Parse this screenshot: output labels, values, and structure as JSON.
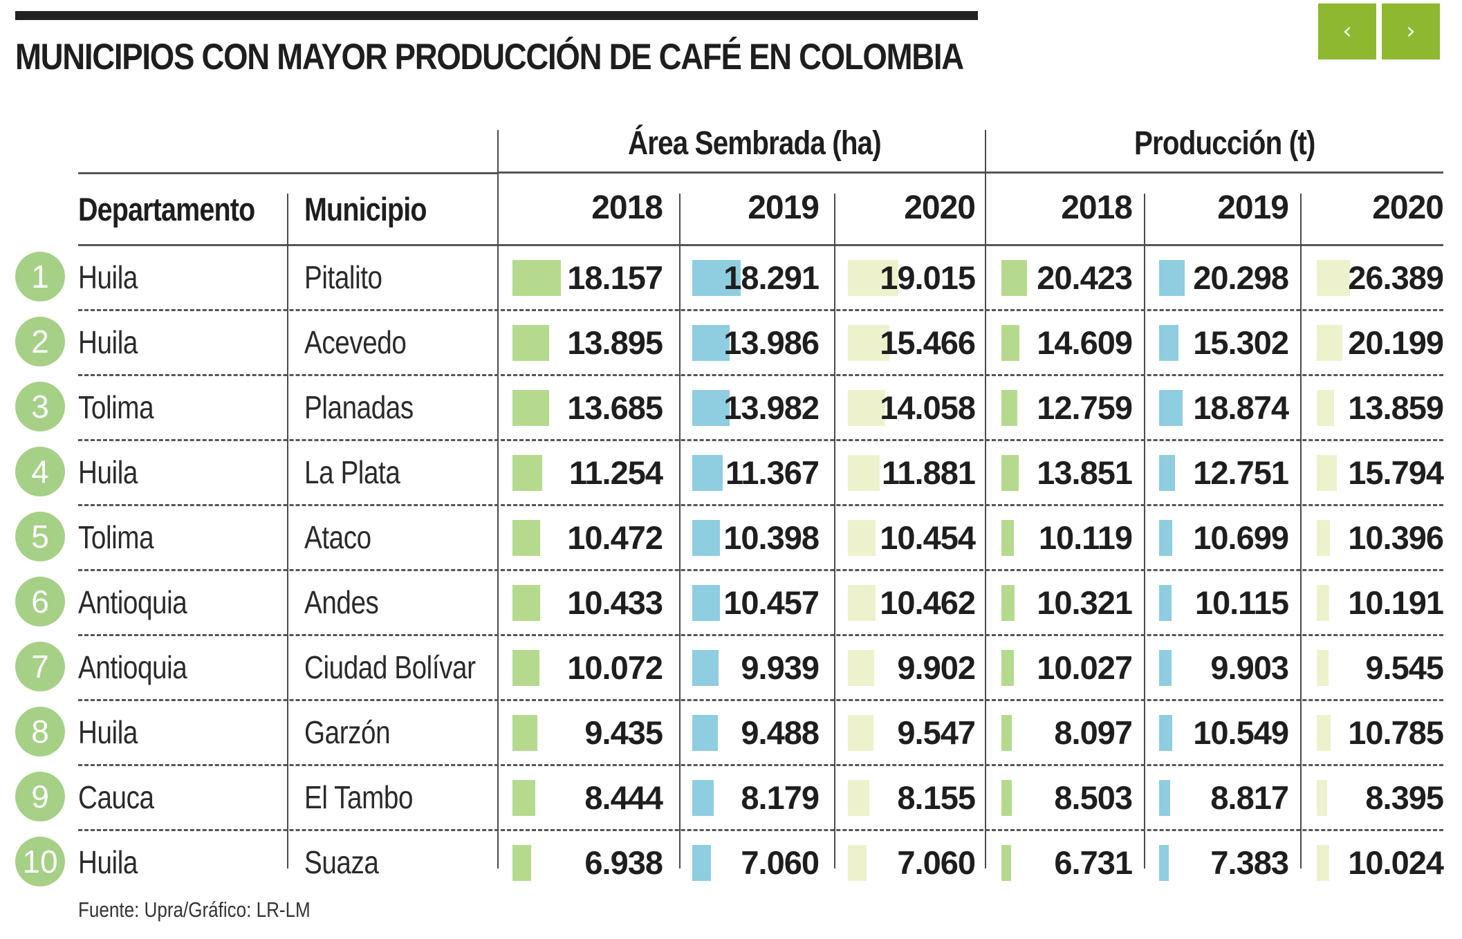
{
  "title": "MUNICIPIOS CON MAYOR PRODUCCIÓN DE CAFÉ EN COLOMBIA",
  "nav": {
    "prev_label": "‹",
    "next_label": "›",
    "prev_icon": "chevron-left-icon",
    "next_icon": "chevron-right-icon"
  },
  "colors": {
    "accent": "#8db82f",
    "rank_badge": "#a5d086",
    "bar_2018": "#b5da8e",
    "bar_2019": "#8fcde0",
    "bar_2020": "#eef2cc"
  },
  "source": "Fuente: Upra/Gráfico: LR-LM",
  "chart_data": {
    "type": "table",
    "title": "MUNICIPIOS CON MAYOR PRODUCCIÓN DE CAFÉ EN COLOMBIA",
    "column_headers": {
      "department": "Departamento",
      "municipality": "Municipio"
    },
    "groups": [
      {
        "name": "Área Sembrada (ha)",
        "years": [
          "2018",
          "2019",
          "2020"
        ]
      },
      {
        "name": "Producción (t)",
        "years": [
          "2018",
          "2019",
          "2020"
        ]
      }
    ],
    "rows": [
      {
        "rank": "1",
        "departamento": "Huila",
        "municipio": "Pitalito",
        "area": [
          18157,
          18291,
          19015
        ],
        "area_labels": [
          "18.157",
          "18.291",
          "19.015"
        ],
        "produccion": [
          20423,
          20298,
          26389
        ],
        "produccion_labels": [
          "20.423",
          "20.298",
          "26.389"
        ]
      },
      {
        "rank": "2",
        "departamento": "Huila",
        "municipio": "Acevedo",
        "area": [
          13895,
          13986,
          15466
        ],
        "area_labels": [
          "13.895",
          "13.986",
          "15.466"
        ],
        "produccion": [
          14609,
          15302,
          20199
        ],
        "produccion_labels": [
          "14.609",
          "15.302",
          "20.199"
        ]
      },
      {
        "rank": "3",
        "departamento": "Tolima",
        "municipio": "Planadas",
        "area": [
          13685,
          13982,
          14058
        ],
        "area_labels": [
          "13.685",
          "13.982",
          "14.058"
        ],
        "produccion": [
          12759,
          18874,
          13859
        ],
        "produccion_labels": [
          "12.759",
          "18.874",
          "13.859"
        ]
      },
      {
        "rank": "4",
        "departamento": "Huila",
        "municipio": "La Plata",
        "area": [
          11254,
          11367,
          11881
        ],
        "area_labels": [
          "11.254",
          "11.367",
          "11.881"
        ],
        "produccion": [
          13851,
          12751,
          15794
        ],
        "produccion_labels": [
          "13.851",
          "12.751",
          "15.794"
        ]
      },
      {
        "rank": "5",
        "departamento": "Tolima",
        "municipio": "Ataco",
        "area": [
          10472,
          10398,
          10454
        ],
        "area_labels": [
          "10.472",
          "10.398",
          "10.454"
        ],
        "produccion": [
          10119,
          10699,
          10396
        ],
        "produccion_labels": [
          "10.119",
          "10.699",
          "10.396"
        ]
      },
      {
        "rank": "6",
        "departamento": "Antioquia",
        "municipio": "Andes",
        "area": [
          10433,
          10457,
          10462
        ],
        "area_labels": [
          "10.433",
          "10.457",
          "10.462"
        ],
        "produccion": [
          10321,
          10115,
          10191
        ],
        "produccion_labels": [
          "10.321",
          "10.115",
          "10.191"
        ]
      },
      {
        "rank": "7",
        "departamento": "Antioquia",
        "municipio": "Ciudad Bolívar",
        "area": [
          10072,
          9939,
          9902
        ],
        "area_labels": [
          "10.072",
          "9.939",
          "9.902"
        ],
        "produccion": [
          10027,
          9903,
          9545
        ],
        "produccion_labels": [
          "10.027",
          "9.903",
          "9.545"
        ]
      },
      {
        "rank": "8",
        "departamento": "Huila",
        "municipio": "Garzón",
        "area": [
          9435,
          9488,
          9547
        ],
        "area_labels": [
          "9.435",
          "9.488",
          "9.547"
        ],
        "produccion": [
          8097,
          10549,
          10785
        ],
        "produccion_labels": [
          "8.097",
          "10.549",
          "10.785"
        ]
      },
      {
        "rank": "9",
        "departamento": "Cauca",
        "municipio": "El Tambo",
        "area": [
          8444,
          8179,
          8155
        ],
        "area_labels": [
          "8.444",
          "8.179",
          "8.155"
        ],
        "produccion": [
          8503,
          8817,
          8395
        ],
        "produccion_labels": [
          "8.503",
          "8.817",
          "8.395"
        ]
      },
      {
        "rank": "10",
        "departamento": "Huila",
        "municipio": "Suaza",
        "area": [
          6938,
          7060,
          7060
        ],
        "area_labels": [
          "6.938",
          "7.060",
          "7.060"
        ],
        "produccion": [
          6731,
          7383,
          10024
        ],
        "produccion_labels": [
          "6.731",
          "7.383",
          "10.024"
        ]
      }
    ]
  }
}
